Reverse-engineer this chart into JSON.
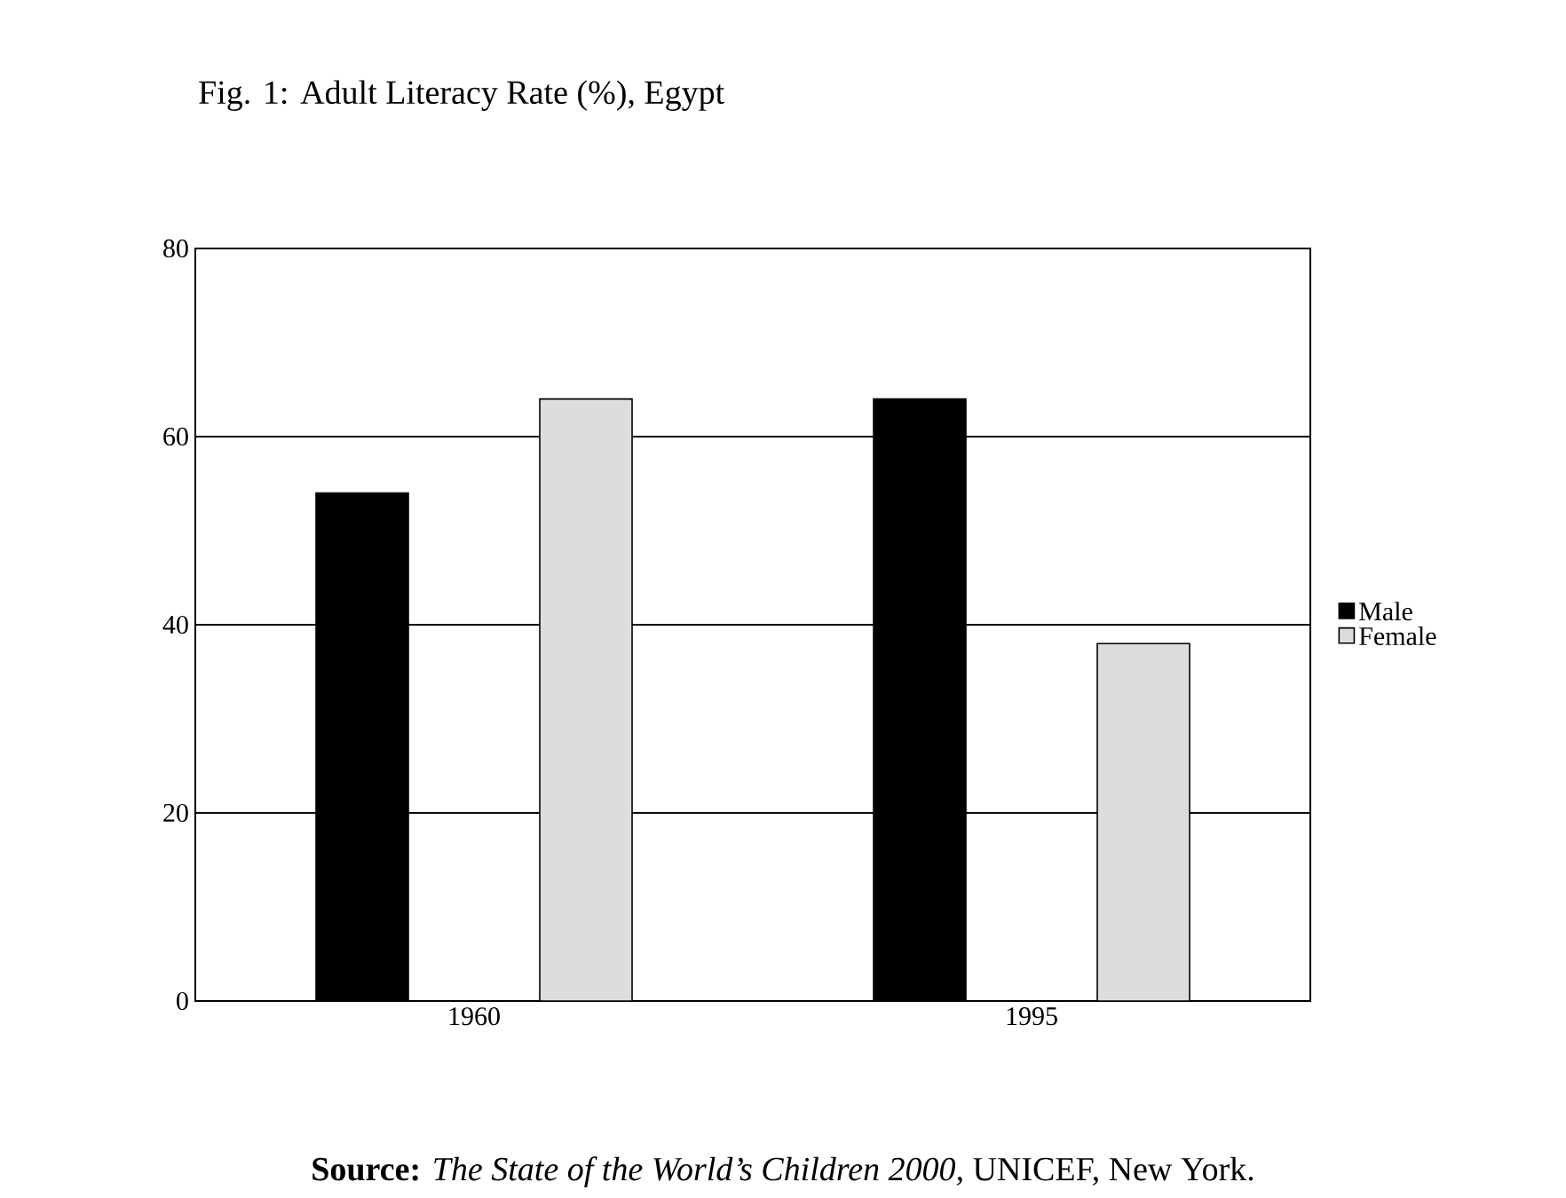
{
  "chart_data": {
    "type": "bar",
    "title": "Fig. 1: Adult Literacy Rate (%), Egypt",
    "categories": [
      "1960",
      "1995"
    ],
    "series": [
      {
        "name": "Male",
        "color": "#000000",
        "values": [
          54,
          64
        ]
      },
      {
        "name": "Female",
        "color": "#dddddd",
        "values": [
          64,
          38
        ]
      }
    ],
    "ylim": [
      0,
      80
    ],
    "yticks": [
      0,
      20,
      40,
      60,
      80
    ],
    "grid": "y",
    "legend": "right",
    "annotations": [
      "**Source:** *The State of the World’s Children 2000,* UNICEF, New York."
    ]
  }
}
